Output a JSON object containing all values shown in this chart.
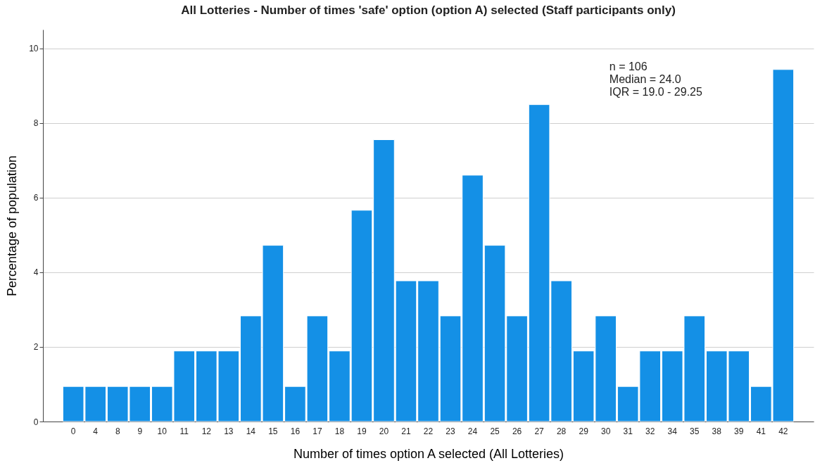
{
  "chart_data": {
    "type": "bar",
    "title": "All Lotteries - Number of times 'safe' option (option A) selected (Staff participants only)",
    "xlabel": "Number of times option A selected (All Lotteries)",
    "ylabel": "Percentage of population",
    "categories": [
      "0",
      "4",
      "8",
      "9",
      "10",
      "11",
      "12",
      "13",
      "14",
      "15",
      "16",
      "17",
      "18",
      "19",
      "20",
      "21",
      "22",
      "23",
      "24",
      "25",
      "26",
      "27",
      "28",
      "29",
      "30",
      "31",
      "32",
      "34",
      "35",
      "38",
      "39",
      "41",
      "42"
    ],
    "values": [
      0.94,
      0.94,
      0.94,
      0.94,
      0.94,
      1.89,
      1.89,
      1.89,
      2.83,
      4.72,
      0.94,
      2.83,
      1.89,
      5.66,
      7.55,
      3.77,
      3.77,
      2.83,
      6.6,
      4.72,
      2.83,
      8.49,
      3.77,
      1.89,
      2.83,
      0.94,
      1.89,
      1.89,
      2.83,
      1.89,
      1.89,
      0.94,
      9.43
    ],
    "color": "#1490e6",
    "ylim": [
      0,
      10.5
    ],
    "yticks": [
      0,
      2,
      4,
      6,
      8,
      10
    ],
    "grid": "y",
    "annotations": [
      "n = 106",
      "Median = 24.0",
      "IQR = 19.0 - 29.25"
    ]
  }
}
